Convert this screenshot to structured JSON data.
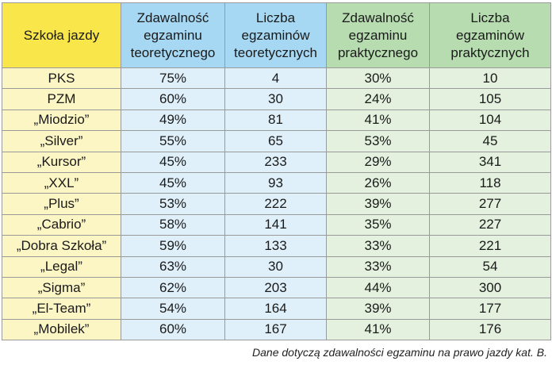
{
  "chart_data": {
    "type": "table",
    "columns": [
      "Szkoła jazdy",
      "Zdawalność\negzaminu\nteoretycznego",
      "Liczba\negzaminów\nteoretycznych",
      "Zdawalność\negzaminu\npraktycznego",
      "Liczba\negzaminów\npraktycznych"
    ],
    "rows": [
      [
        "PKS",
        "75%",
        "4",
        "30%",
        "10"
      ],
      [
        "PZM",
        "60%",
        "30",
        "24%",
        "105"
      ],
      [
        "„Miodzio”",
        "49%",
        "81",
        "41%",
        "104"
      ],
      [
        "„Silver”",
        "55%",
        "65",
        "53%",
        "45"
      ],
      [
        "„Kursor”",
        "45%",
        "233",
        "29%",
        "341"
      ],
      [
        "„XXL”",
        "45%",
        "93",
        "26%",
        "118"
      ],
      [
        "„Plus”",
        "53%",
        "222",
        "39%",
        "277"
      ],
      [
        "„Cabrio”",
        "58%",
        "141",
        "35%",
        "227"
      ],
      [
        "„Dobra Szkoła”",
        "59%",
        "133",
        "33%",
        "221"
      ],
      [
        "„Legal”",
        "63%",
        "30",
        "33%",
        "54"
      ],
      [
        "„Sigma”",
        "62%",
        "203",
        "44%",
        "300"
      ],
      [
        "„El-Team”",
        "54%",
        "164",
        "39%",
        "177"
      ],
      [
        "„Mobilek”",
        "60%",
        "167",
        "41%",
        "176"
      ]
    ],
    "footnote": "Dane dotyczą zdawalności egzaminu na prawo jazdy kat. B.",
    "colors": {
      "school_header": "#f9e64a",
      "school_cells": "#fcf5c4",
      "theory_header": "#a6d8f3",
      "theory_cells": "#dff0fa",
      "practical_header": "#b6dcb0",
      "practical_cells": "#e3f1de"
    }
  }
}
